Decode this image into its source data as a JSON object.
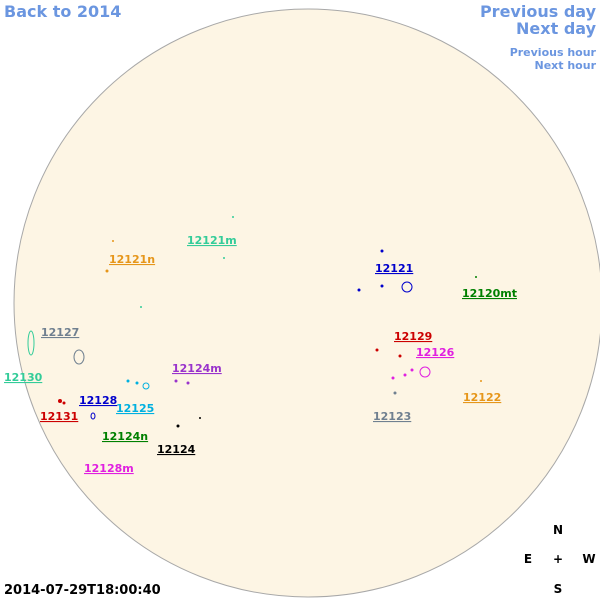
{
  "navigation": {
    "back": "Back to 2014",
    "previous_day": "Previous day",
    "next_day": "Next day",
    "previous_hour": "Previous hour",
    "next_hour": "Next hour"
  },
  "regions": [
    {
      "label": "12121m",
      "color": "#33cc99"
    },
    {
      "label": "12121n",
      "color": "#e6961a"
    },
    {
      "label": "12121",
      "color": "#0000cc"
    },
    {
      "label": "12120mt",
      "color": "#008000"
    },
    {
      "label": "12127",
      "color": "#708090"
    },
    {
      "label": "12129",
      "color": "#cc0000"
    },
    {
      "label": "12126",
      "color": "#e020e0"
    },
    {
      "label": "12124m",
      "color": "#9933cc"
    },
    {
      "label": "12130",
      "color": "#33cc99"
    },
    {
      "label": "12122",
      "color": "#e6961a"
    },
    {
      "label": "12128",
      "color": "#0000cc"
    },
    {
      "label": "12125",
      "color": "#00b0e0"
    },
    {
      "label": "12131",
      "color": "#cc0000"
    },
    {
      "label": "12123",
      "color": "#708090"
    },
    {
      "label": "12124n",
      "color": "#008000"
    },
    {
      "label": "12124",
      "color": "#000000"
    },
    {
      "label": "12128m",
      "color": "#e020e0"
    }
  ],
  "compass": {
    "north": "N",
    "east": "E",
    "center": "+",
    "west": "W",
    "south": "S"
  },
  "timestamp": "2014-07-29T18:00:40"
}
